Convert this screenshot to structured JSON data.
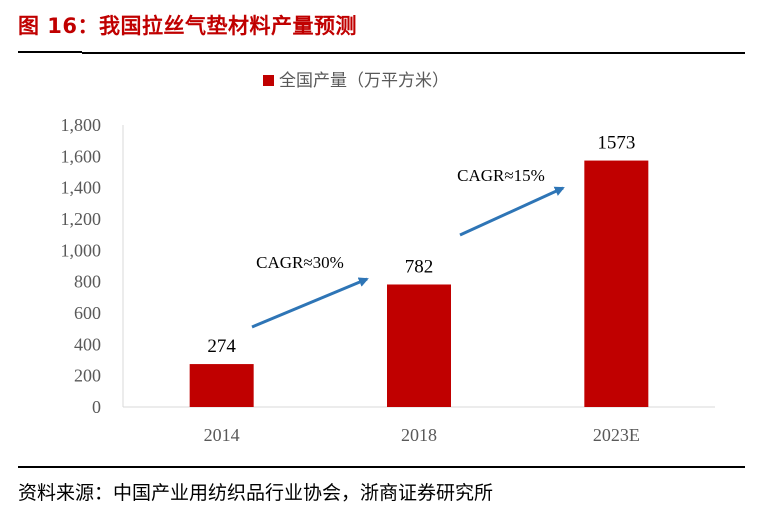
{
  "title": "图 16：我国拉丝气垫材料产量预测",
  "source": "资料来源：中国产业用纺织品行业协会，浙商证券研究所",
  "chart_data": {
    "type": "bar",
    "categories": [
      "2014",
      "2018",
      "2023E"
    ],
    "series": [
      {
        "name": "全国产量（万平方米）",
        "values": [
          274,
          782,
          1573
        ],
        "color": "#c00000"
      }
    ],
    "data_labels": [
      "274",
      "782",
      "1573"
    ],
    "ylim": [
      0,
      1800
    ],
    "yticks": [
      0,
      200,
      400,
      600,
      800,
      1000,
      1200,
      1400,
      1600,
      1800
    ],
    "ytick_labels": [
      "0",
      "200",
      "400",
      "600",
      "800",
      "1,000",
      "1,200",
      "1,400",
      "1,600",
      "1,800"
    ],
    "legend_position": "top",
    "grid": false,
    "annotations": [
      {
        "text": "CAGR≈30%",
        "from": "2014",
        "to": "2018"
      },
      {
        "text": "CAGR≈15%",
        "from": "2018",
        "to": "2023E"
      }
    ],
    "arrow_color": "#2e75b6"
  }
}
